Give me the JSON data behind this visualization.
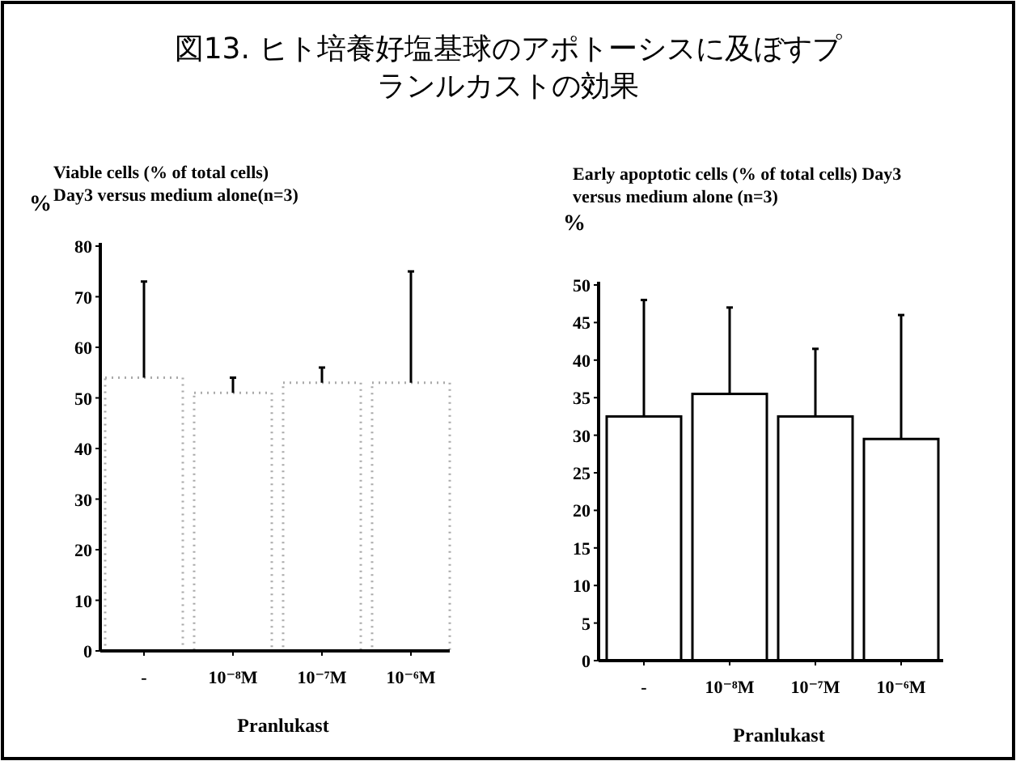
{
  "chart_data": [
    {
      "type": "bar",
      "title": "図13. ヒト培養好塩基球のアポトーシスに及ぼすプランルカストの効果",
      "subtitle": "Viable cells (% of total cells)\nDay3 versus medium alone(n=3)",
      "ylabel": "%",
      "xlabel": "Pranlukast",
      "categories": [
        "-",
        "10⁻⁸M",
        "10⁻⁷M",
        "10⁻⁶M"
      ],
      "values": [
        54,
        51,
        53,
        53
      ],
      "color": "#ffffff",
      "errors": [
        [
          54,
          73
        ],
        [
          51,
          54
        ],
        [
          53,
          56
        ],
        [
          53,
          75
        ]
      ],
      "ylim": [
        0,
        80
      ],
      "yticks": [
        0,
        10,
        20,
        30,
        40,
        50,
        60,
        70,
        80
      ],
      "grid": false
    },
    {
      "type": "bar",
      "subtitle": "Early apoptotic cells (% of total cells) Day3\nversus medium alone (n=3)",
      "ylabel": "%",
      "xlabel": "Pranlukast",
      "categories": [
        "-",
        "10⁻⁸M",
        "10⁻⁷M",
        "10⁻⁶M"
      ],
      "values": [
        32.5,
        35.5,
        32.5,
        29.5
      ],
      "color": "#ffffff",
      "errors": [
        [
          32.5,
          48
        ],
        [
          35.5,
          47
        ],
        [
          32.5,
          41.5
        ],
        [
          29.5,
          46
        ]
      ],
      "ylim": [
        0,
        50
      ],
      "yticks": [
        0,
        5,
        10,
        15,
        20,
        25,
        30,
        35,
        40,
        45,
        50
      ],
      "grid": false
    }
  ]
}
